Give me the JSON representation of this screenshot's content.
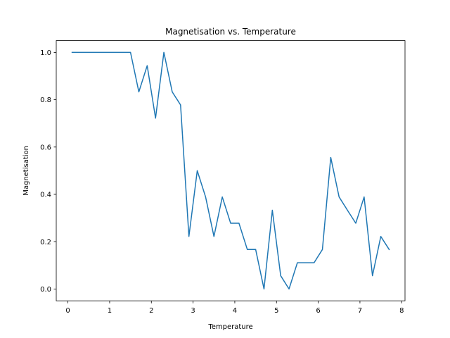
{
  "chart_data": {
    "type": "line",
    "title": "Magnetisation vs. Temperature",
    "xlabel": "Temperature",
    "ylabel": "Magnetisation",
    "xlim": [
      -0.28,
      8.08
    ],
    "ylim": [
      -0.05,
      1.05
    ],
    "xticks": [
      0,
      1,
      2,
      3,
      4,
      5,
      6,
      7,
      8
    ],
    "yticks": [
      0.0,
      0.2,
      0.4,
      0.6,
      0.8,
      1.0
    ],
    "grid": false,
    "series": [
      {
        "color": "#1f77b4",
        "x": [
          0.1,
          0.3,
          0.5,
          0.7,
          0.9,
          1.1,
          1.3,
          1.5,
          1.7,
          1.9,
          2.1,
          2.3,
          2.5,
          2.7,
          2.9,
          3.1,
          3.3,
          3.5,
          3.7,
          3.9,
          4.1,
          4.3,
          4.5,
          4.7,
          4.9,
          5.1,
          5.3,
          5.5,
          5.7,
          5.9,
          6.1,
          6.3,
          6.5,
          6.7,
          6.9,
          7.1,
          7.3,
          7.5,
          7.7
        ],
        "y": [
          1.0,
          1.0,
          1.0,
          1.0,
          1.0,
          1.0,
          1.0,
          1.0,
          0.833,
          0.944,
          0.722,
          1.0,
          0.833,
          0.778,
          0.222,
          0.5,
          0.389,
          0.222,
          0.389,
          0.278,
          0.278,
          0.167,
          0.167,
          0.0,
          0.333,
          0.056,
          0.0,
          0.111,
          0.111,
          0.111,
          0.167,
          0.556,
          0.389,
          0.333,
          0.278,
          0.389,
          0.056,
          0.222,
          0.167
        ]
      }
    ]
  }
}
